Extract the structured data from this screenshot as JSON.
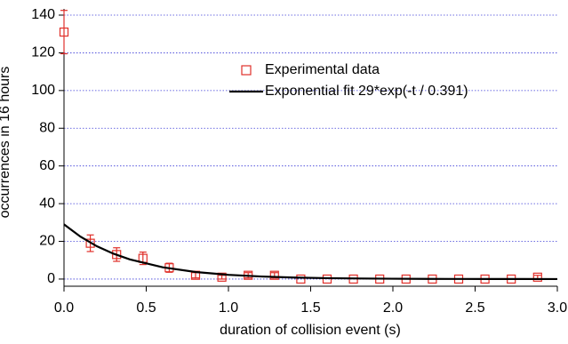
{
  "chart_data": {
    "type": "scatter",
    "xlabel": "duration of collision event (s)",
    "ylabel": "occurrences in 16 hours",
    "xlim": [
      0,
      3.0
    ],
    "ylim": [
      -3.8,
      143.3
    ],
    "xticks": [
      {
        "value": 0,
        "label": "0.0"
      },
      0.5,
      {
        "value": 1,
        "label": "1.0"
      },
      1.5,
      {
        "value": 2,
        "label": "2.0"
      },
      2.5,
      {
        "value": 3,
        "label": "3.0"
      }
    ],
    "yticks": [
      0,
      20,
      40,
      60,
      80,
      100,
      120,
      140
    ],
    "grid": true,
    "legend": "upper right",
    "series": [
      {
        "name": "Experimental data",
        "color": "#e0302a",
        "mode": "markers",
        "x": [
          0,
          0.16,
          0.32,
          0.48,
          0.64,
          0.8,
          0.96,
          1.12,
          1.28,
          1.44,
          1.6,
          1.76,
          1.92,
          2.08,
          2.24,
          2.4,
          2.56,
          2.72,
          2.88
        ],
        "values": [
          131,
          19,
          13,
          11,
          6,
          2,
          1,
          2,
          2,
          0,
          0,
          0,
          0,
          0,
          0,
          0,
          0,
          0,
          1
        ],
        "errors": [
          11.5,
          4.4,
          3.6,
          3.3,
          2.4,
          1.4,
          1,
          1.4,
          1.4,
          0,
          0,
          0,
          0,
          0,
          0,
          0,
          0,
          0,
          1
        ]
      },
      {
        "name": "Exponential fit  29*exp(-t / 0.391)",
        "color": "#000000",
        "mode": "line",
        "x": [
          0,
          0.1,
          0.2,
          0.3,
          0.4,
          0.6,
          0.8,
          1.0,
          1.2,
          1.4,
          1.6,
          1.8,
          2.0,
          2.2,
          2.4,
          2.6,
          2.8,
          3.0
        ],
        "values": [
          29,
          22.48,
          17.39,
          13.49,
          10.43,
          6.25,
          3.75,
          2.25,
          1.35,
          0.81,
          0.48,
          0.29,
          0.17,
          0.1,
          0.06,
          0.04,
          0.02,
          0.01
        ]
      }
    ]
  }
}
